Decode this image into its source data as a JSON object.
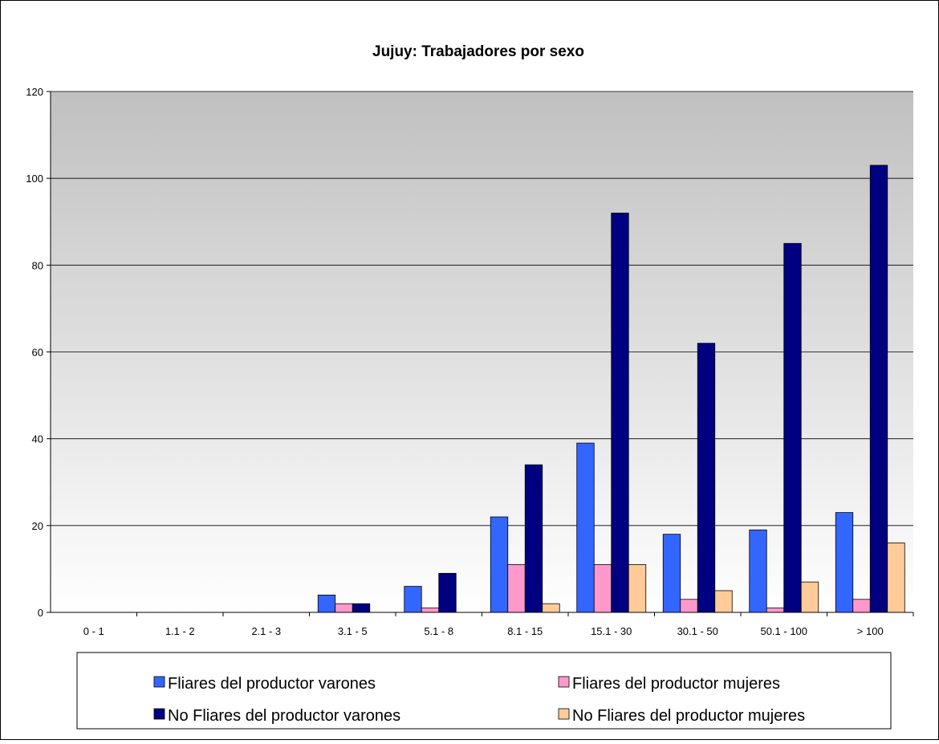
{
  "chart_data": {
    "type": "bar",
    "title": "Jujuy: Trabajadores por sexo",
    "xlabel": "",
    "ylabel": "",
    "ylim": [
      0,
      120
    ],
    "yticks": [
      0,
      20,
      40,
      60,
      80,
      100,
      120
    ],
    "grid": true,
    "legend_position": "bottom",
    "categories": [
      "0 - 1",
      "1.1 - 2",
      "2.1 - 3",
      "3.1 - 5",
      "5.1 - 8",
      "8.1 - 15",
      "15.1 - 30",
      "30.1 - 50",
      "50.1 - 100",
      "> 100"
    ],
    "series": [
      {
        "name": "Fliares del productor varones",
        "color": "#3366ff",
        "values": [
          0,
          0,
          0,
          4,
          6,
          22,
          39,
          18,
          19,
          23
        ]
      },
      {
        "name": "Fliares del productor mujeres",
        "color": "#ff99cc",
        "values": [
          0,
          0,
          0,
          2,
          1,
          11,
          11,
          3,
          1,
          3
        ]
      },
      {
        "name": "No Fliares del productor varones",
        "color": "#000080",
        "values": [
          0,
          0,
          0,
          2,
          9,
          34,
          92,
          62,
          85,
          103
        ]
      },
      {
        "name": "No Fliares del productor mujeres",
        "color": "#ffcc99",
        "values": [
          0,
          0,
          0,
          0,
          0,
          2,
          11,
          5,
          7,
          16
        ]
      }
    ]
  }
}
